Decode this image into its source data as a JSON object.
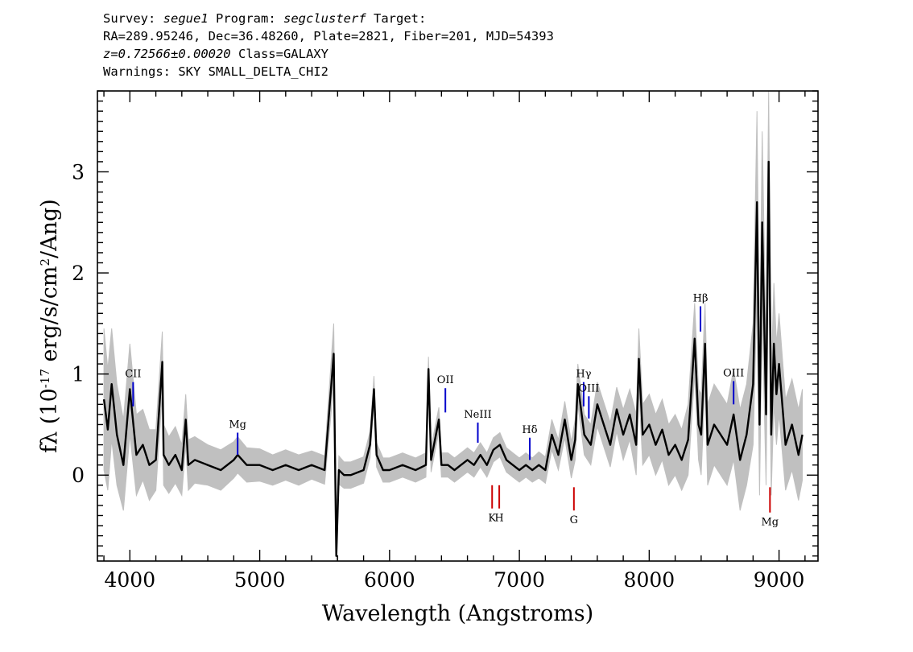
{
  "header": {
    "survey_label": "Survey:",
    "survey": "segue1",
    "program_label": "Program:",
    "program": "segclusterf",
    "target_label": "Target:",
    "coords_line": "RA=289.95246, Dec=36.48260, Plate=2821, Fiber=201, MJD=54393",
    "redshift": "z=0.72566±0.00020",
    "class_text": "Class=GALAXY",
    "warnings_line": "Warnings: SKY SMALL_DELTA_CHI2"
  },
  "chart_data": {
    "type": "line",
    "xlabel": "Wavelength (Angstroms)",
    "ylabel": "fλ (10^-17 erg/s/cm^2/Ang)",
    "xlim": [
      3750,
      9300
    ],
    "ylim": [
      -0.85,
      3.8
    ],
    "x_ticks": [
      4000,
      5000,
      6000,
      7000,
      8000,
      9000
    ],
    "y_ticks": [
      0,
      1,
      2,
      3
    ],
    "grid": false,
    "colors": {
      "flux": "#000000",
      "error": "#c0c0c0",
      "emission": "#0000cc",
      "absorption": "#cc0000"
    },
    "series": [
      {
        "x": [
          3800,
          3830,
          3860,
          3900,
          3950,
          4000,
          4050,
          4100,
          4150,
          4200,
          4250,
          4260,
          4300,
          4350,
          4400,
          4430,
          4450,
          4500,
          4600,
          4700,
          4800,
          4830,
          4900,
          5000,
          5100,
          5200,
          5300,
          5400,
          5500,
          5570,
          5590,
          5610,
          5650,
          5700,
          5800,
          5850,
          5880,
          5900,
          5950,
          6000,
          6100,
          6200,
          6280,
          6300,
          6320,
          6380,
          6400,
          6450,
          6500,
          6550,
          6600,
          6650,
          6700,
          6750,
          6800,
          6850,
          6900,
          6950,
          7000,
          7050,
          7100,
          7150,
          7200,
          7250,
          7300,
          7350,
          7400,
          7430,
          7450,
          7500,
          7550,
          7600,
          7650,
          7700,
          7750,
          7800,
          7850,
          7900,
          7920,
          7950,
          8000,
          8050,
          8100,
          8150,
          8200,
          8250,
          8300,
          8350,
          8380,
          8400,
          8430,
          8450,
          8500,
          8550,
          8600,
          8650,
          8700,
          8750,
          8800,
          8830,
          8850,
          8870,
          8900,
          8920,
          8940,
          8960,
          8980,
          9000,
          9050,
          9100,
          9150,
          9180
        ],
        "values": [
          0.75,
          0.45,
          0.9,
          0.4,
          0.1,
          0.85,
          0.2,
          0.3,
          0.1,
          0.15,
          1.12,
          0.2,
          0.1,
          0.2,
          0.05,
          0.55,
          0.1,
          0.15,
          0.1,
          0.05,
          0.15,
          0.2,
          0.1,
          0.1,
          0.05,
          0.1,
          0.05,
          0.1,
          0.05,
          1.2,
          -0.8,
          0.05,
          0.0,
          0.0,
          0.05,
          0.3,
          0.85,
          0.2,
          0.05,
          0.05,
          0.1,
          0.05,
          0.1,
          1.05,
          0.15,
          0.55,
          0.1,
          0.1,
          0.05,
          0.1,
          0.15,
          0.1,
          0.2,
          0.1,
          0.25,
          0.3,
          0.15,
          0.1,
          0.05,
          0.1,
          0.05,
          0.1,
          0.05,
          0.4,
          0.2,
          0.55,
          0.15,
          0.35,
          0.9,
          0.4,
          0.3,
          0.7,
          0.5,
          0.3,
          0.65,
          0.4,
          0.6,
          0.3,
          1.15,
          0.4,
          0.5,
          0.3,
          0.45,
          0.2,
          0.3,
          0.15,
          0.35,
          1.35,
          0.5,
          0.4,
          1.3,
          0.3,
          0.5,
          0.4,
          0.3,
          0.6,
          0.15,
          0.4,
          0.9,
          2.7,
          0.5,
          2.5,
          0.6,
          3.1,
          0.4,
          1.3,
          0.8,
          1.1,
          0.3,
          0.5,
          0.2,
          0.4
        ],
        "errors": [
          0.7,
          0.6,
          0.55,
          0.5,
          0.45,
          0.45,
          0.4,
          0.35,
          0.35,
          0.3,
          0.3,
          0.3,
          0.28,
          0.28,
          0.25,
          0.25,
          0.25,
          0.23,
          0.2,
          0.2,
          0.18,
          0.18,
          0.17,
          0.16,
          0.15,
          0.15,
          0.15,
          0.14,
          0.14,
          0.3,
          0.4,
          0.14,
          0.13,
          0.13,
          0.13,
          0.13,
          0.13,
          0.12,
          0.12,
          0.12,
          0.12,
          0.12,
          0.12,
          0.12,
          0.12,
          0.12,
          0.12,
          0.12,
          0.12,
          0.12,
          0.12,
          0.12,
          0.12,
          0.12,
          0.12,
          0.12,
          0.12,
          0.12,
          0.12,
          0.12,
          0.12,
          0.13,
          0.13,
          0.15,
          0.15,
          0.18,
          0.18,
          0.2,
          0.2,
          0.2,
          0.2,
          0.22,
          0.22,
          0.22,
          0.22,
          0.25,
          0.25,
          0.3,
          0.3,
          0.3,
          0.3,
          0.3,
          0.3,
          0.3,
          0.3,
          0.3,
          0.35,
          0.35,
          0.35,
          0.4,
          0.4,
          0.4,
          0.4,
          0.4,
          0.4,
          0.45,
          0.5,
          0.5,
          0.6,
          0.9,
          0.7,
          0.9,
          0.7,
          0.9,
          0.6,
          0.6,
          0.5,
          0.5,
          0.45,
          0.45,
          0.45,
          0.45
        ]
      }
    ],
    "lines": [
      {
        "label": "CII",
        "x": 4025,
        "kind": "emission",
        "y_base": 0.68,
        "y_top": 0.92,
        "label_pos": "above"
      },
      {
        "label": "Mg",
        "x": 4830,
        "kind": "emission",
        "y_base": 0.2,
        "y_top": 0.42,
        "label_pos": "above"
      },
      {
        "label": "OII",
        "x": 6430,
        "kind": "emission",
        "y_base": 0.62,
        "y_top": 0.86,
        "label_pos": "above"
      },
      {
        "label": "NeIII",
        "x": 6680,
        "kind": "emission",
        "y_base": 0.32,
        "y_top": 0.52,
        "label_pos": "above"
      },
      {
        "label": "Hδ",
        "x": 7080,
        "kind": "emission",
        "y_base": 0.15,
        "y_top": 0.37,
        "label_pos": "above"
      },
      {
        "label": "Hγ",
        "x": 7495,
        "kind": "emission",
        "y_base": 0.68,
        "y_top": 0.92,
        "label_pos": "above"
      },
      {
        "label": "OIII",
        "x": 7535,
        "kind": "emission",
        "y_base": 0.56,
        "y_top": 0.78,
        "label_pos": "above"
      },
      {
        "label": "Hβ",
        "x": 8395,
        "kind": "emission",
        "y_base": 1.42,
        "y_top": 1.67,
        "label_pos": "above"
      },
      {
        "label": "OIII",
        "x": 8650,
        "kind": "emission",
        "y_base": 0.7,
        "y_top": 0.93,
        "label_pos": "above"
      },
      {
        "label": "K",
        "x": 6790,
        "kind": "absorption",
        "y_base": -0.1,
        "y_top": -0.33,
        "label_pos": "below"
      },
      {
        "label": "H",
        "x": 6845,
        "kind": "absorption",
        "y_base": -0.1,
        "y_top": -0.33,
        "label_pos": "below"
      },
      {
        "label": "G",
        "x": 7420,
        "kind": "absorption",
        "y_base": -0.12,
        "y_top": -0.35,
        "label_pos": "below"
      },
      {
        "label": "Mg",
        "x": 8930,
        "kind": "absorption",
        "y_base": -0.12,
        "y_top": -0.37,
        "label_pos": "below"
      }
    ]
  }
}
